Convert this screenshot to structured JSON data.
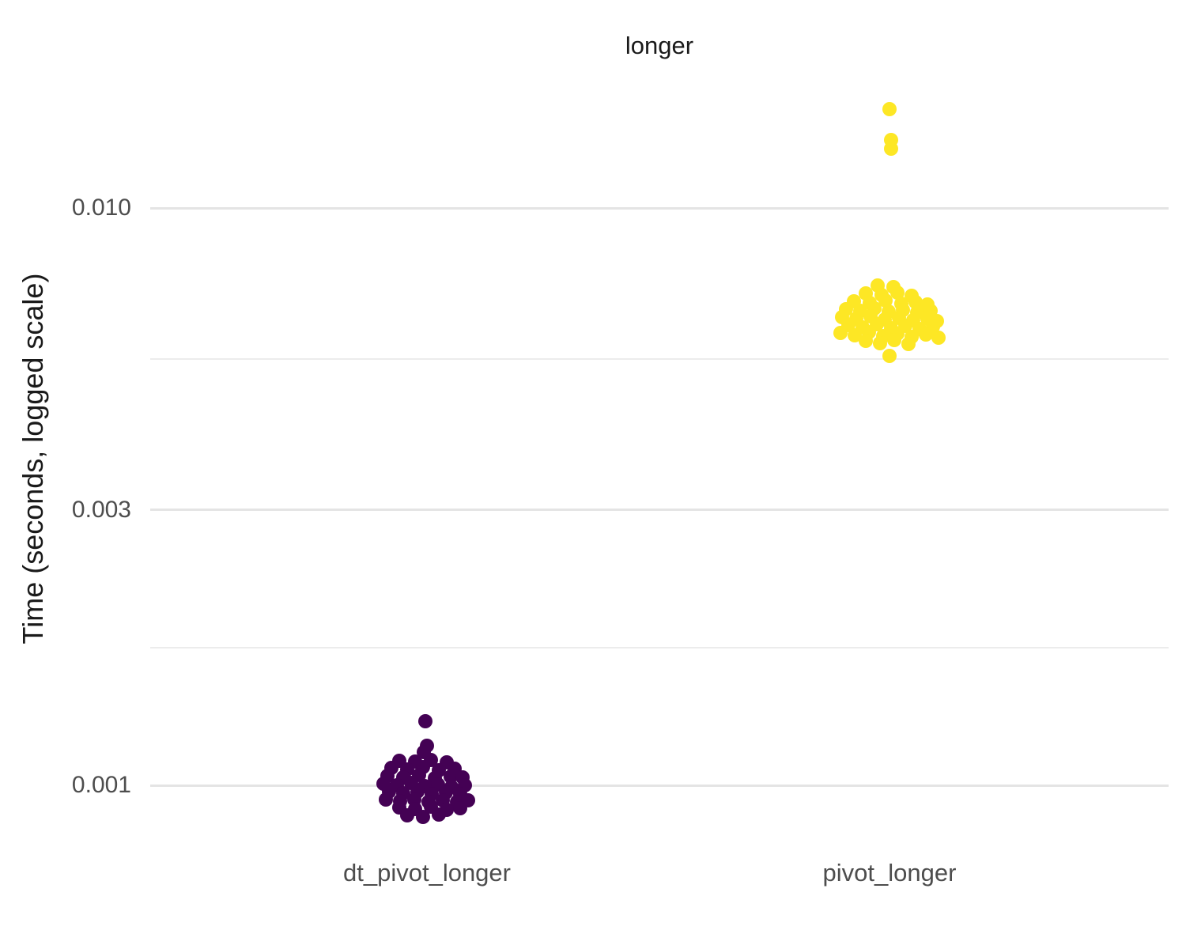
{
  "chart_data": {
    "type": "scatter",
    "title": "longer",
    "ylabel": "Time (seconds, logged scale)",
    "xlabel": "",
    "y_scale": "log10",
    "grid": "horizontal-only",
    "legend": "none",
    "x_categories": [
      "dt_pivot_longer",
      "pivot_longer"
    ],
    "y_ticks": [
      {
        "label": "0.010",
        "value": 0.01
      },
      {
        "label": "0.003",
        "value": 0.003
      },
      {
        "label": "0.001",
        "value": 0.001
      }
    ],
    "y_minor_gridline_values": [
      0.005477,
      0.001732
    ],
    "y_range_approx": [
      0.00085,
      0.016
    ],
    "series": [
      {
        "name": "dt_pivot_longer",
        "color": "#440154",
        "points": [
          [
            -35,
            0.001104
          ],
          [
            -15,
            0.001099
          ],
          [
            5,
            0.001107
          ],
          [
            25,
            0.001096
          ],
          [
            -45,
            0.001071
          ],
          [
            -25,
            0.001066
          ],
          [
            -5,
            0.001074
          ],
          [
            15,
            0.001063
          ],
          [
            35,
            0.001069
          ],
          [
            -50,
            0.001038
          ],
          [
            -30,
            0.001032
          ],
          [
            -10,
            0.001041
          ],
          [
            10,
            0.001029
          ],
          [
            30,
            0.001036
          ],
          [
            45,
            0.001033
          ],
          [
            -55,
            0.001006
          ],
          [
            -38,
            0.000999
          ],
          [
            -20,
            0.001009
          ],
          [
            -3,
            0.000997
          ],
          [
            14,
            0.001004
          ],
          [
            31,
            0.000995
          ],
          [
            48,
            0.001001
          ],
          [
            -48,
            0.000974
          ],
          [
            -30,
            0.000968
          ],
          [
            -12,
            0.000976
          ],
          [
            6,
            0.000965
          ],
          [
            24,
            0.000971
          ],
          [
            42,
            0.000967
          ],
          [
            -52,
            0.000944
          ],
          [
            -34,
            0.000938
          ],
          [
            -16,
            0.000946
          ],
          [
            2,
            0.000935
          ],
          [
            20,
            0.000941
          ],
          [
            38,
            0.000937
          ],
          [
            52,
            0.000943
          ],
          [
            -35,
            0.000915
          ],
          [
            -15,
            0.000909
          ],
          [
            5,
            0.000917
          ],
          [
            25,
            0.000906
          ],
          [
            42,
            0.000912
          ],
          [
            -25,
            0.000887
          ],
          [
            -5,
            0.000882
          ],
          [
            15,
            0.000889
          ],
          [
            -2,
            0.00129
          ],
          [
            0,
            0.001172
          ],
          [
            -4,
            0.00114
          ]
        ]
      },
      {
        "name": "pivot_longer",
        "color": "#FDE725",
        "points": [
          [
            -15,
            0.00734
          ],
          [
            5,
            0.00729
          ],
          [
            -30,
            0.00711
          ],
          [
            -10,
            0.00706
          ],
          [
            10,
            0.00713
          ],
          [
            28,
            0.00704
          ],
          [
            -45,
            0.00689
          ],
          [
            -25,
            0.00684
          ],
          [
            -5,
            0.00691
          ],
          [
            15,
            0.00682
          ],
          [
            33,
            0.00687
          ],
          [
            48,
            0.0068
          ],
          [
            -55,
            0.00668
          ],
          [
            -37,
            0.00663
          ],
          [
            -19,
            0.0067
          ],
          [
            -1,
            0.00661
          ],
          [
            17,
            0.00666
          ],
          [
            35,
            0.00659
          ],
          [
            52,
            0.00664
          ],
          [
            -60,
            0.00647
          ],
          [
            -42,
            0.00642
          ],
          [
            -24,
            0.00649
          ],
          [
            -6,
            0.0064
          ],
          [
            12,
            0.00645
          ],
          [
            30,
            0.00638
          ],
          [
            48,
            0.00643
          ],
          [
            60,
            0.00636
          ],
          [
            -52,
            0.00627
          ],
          [
            -34,
            0.00622
          ],
          [
            -16,
            0.00629
          ],
          [
            2,
            0.0062
          ],
          [
            20,
            0.00625
          ],
          [
            38,
            0.00618
          ],
          [
            55,
            0.00623
          ],
          [
            -62,
            0.00607
          ],
          [
            -44,
            0.00602
          ],
          [
            -26,
            0.00609
          ],
          [
            -8,
            0.006
          ],
          [
            10,
            0.00605
          ],
          [
            28,
            0.00598
          ],
          [
            46,
            0.00603
          ],
          [
            62,
            0.00596
          ],
          [
            -30,
            0.00588
          ],
          [
            -12,
            0.00583
          ],
          [
            6,
            0.0059
          ],
          [
            24,
            0.00581
          ],
          [
            0,
            0.00554
          ],
          [
            0,
            0.01483
          ],
          [
            2,
            0.01312
          ],
          [
            2,
            0.01267
          ]
        ]
      }
    ]
  },
  "colors": {
    "background": "#FFFFFF",
    "major_gridline": "#E4E4E4",
    "minor_gridline": "#ECECEC",
    "title_text": "#1A1A1A",
    "axis_text": "#4D4D4D",
    "series_dt_pivot_longer": "#440154",
    "series_pivot_longer": "#FDE725"
  }
}
